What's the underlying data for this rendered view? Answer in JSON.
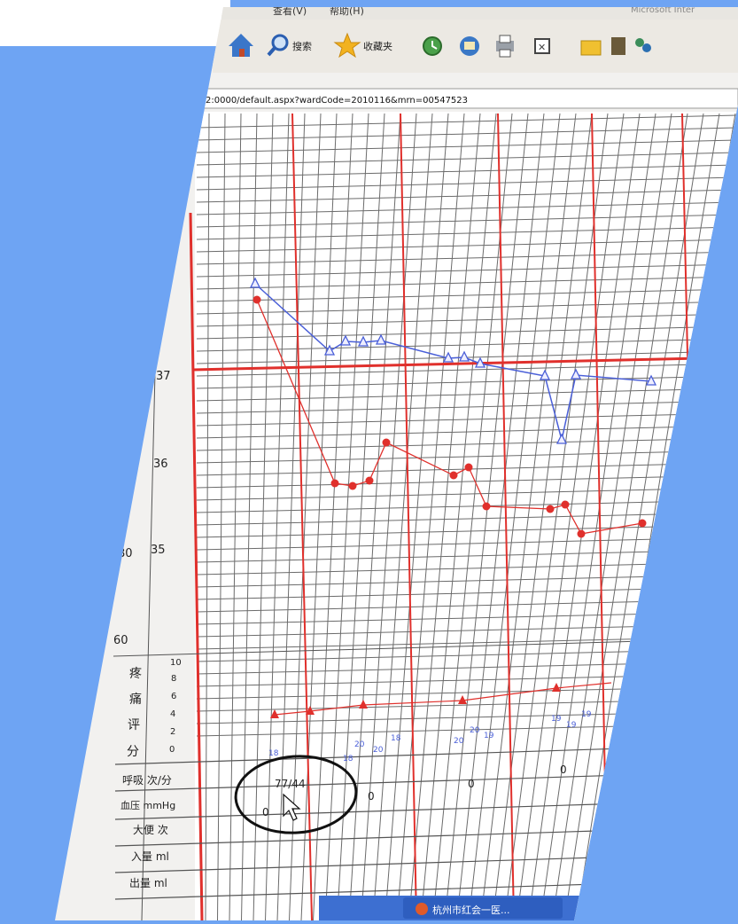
{
  "browser": {
    "menu_items": [
      "查看(V)",
      "帮助(H)"
    ],
    "title_fragment": "Microsoft Inter",
    "toolbar": {
      "search_label": "搜索",
      "favorites_label": "收藏夹"
    },
    "address_text": "2:0000/default.aspx?wardCode=2010116&mrn=00547523"
  },
  "chart": {
    "temp_ticks": [
      "37",
      "36",
      "35"
    ],
    "pulse_ticks": [
      "80",
      "60"
    ],
    "pain_scale_ticks": [
      "10",
      "8",
      "6",
      "4",
      "2",
      "0"
    ],
    "pain_label_chars": [
      "疼",
      "痛",
      "评",
      "分"
    ],
    "row_labels": {
      "respiration": "呼吸 次/分",
      "blood_pressure": "血压 mmHg",
      "stool": "大便 次",
      "intake": "入量 ml",
      "output": "出量 ml"
    },
    "respiration_values": [
      "18",
      "18",
      "20",
      "20",
      "18",
      "20",
      "20",
      "19",
      "19",
      "19",
      "19"
    ],
    "bp_value": "77/44",
    "stool_values": [
      "0",
      "0",
      "0",
      "0"
    ]
  },
  "taskbar": {
    "window_label": "杭州市红会一医..."
  },
  "colors": {
    "background_blue": "#6ea4f3",
    "grid_red": "#e0302c",
    "temperature_line": "#4a5fd8",
    "pulse_line": "#e0302c",
    "taskbar_blue": "#3d6fd1"
  }
}
